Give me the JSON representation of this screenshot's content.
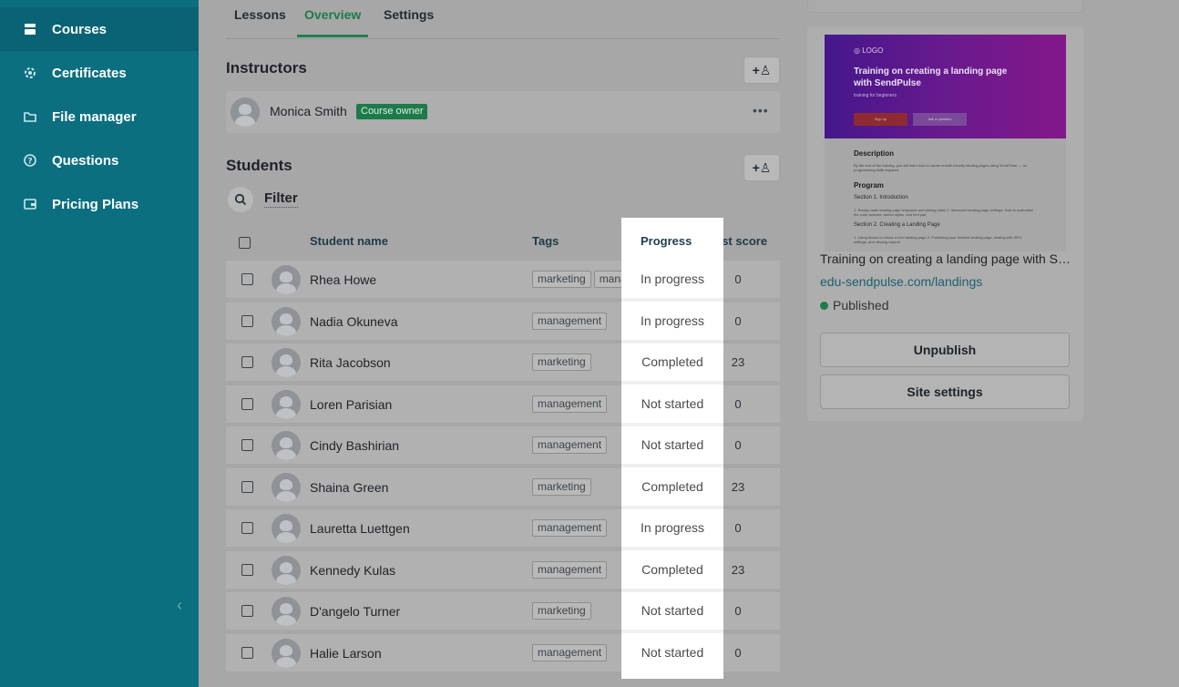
{
  "sidebar": {
    "items": [
      {
        "label": "Courses",
        "icon": "courses-icon",
        "active": true
      },
      {
        "label": "Certificates",
        "icon": "gear-icon",
        "active": false
      },
      {
        "label": "File manager",
        "icon": "folder-icon",
        "active": false
      },
      {
        "label": "Questions",
        "icon": "question-icon",
        "active": false
      },
      {
        "label": "Pricing Plans",
        "icon": "wallet-icon",
        "active": false
      }
    ],
    "collapse_glyph": "‹"
  },
  "tabs": [
    {
      "label": "Lessons",
      "active": false
    },
    {
      "label": "Overview",
      "active": true
    },
    {
      "label": "Settings",
      "active": false
    }
  ],
  "instructors": {
    "title": "Instructors",
    "add_label": "+♙",
    "list": [
      {
        "name": "Monica Smith",
        "badge": "Course owner",
        "more": "•••"
      }
    ]
  },
  "students": {
    "title": "Students",
    "add_label": "+♙",
    "filter_label": "Filter",
    "columns": {
      "name": "Student name",
      "progress": "Progress",
      "tags": "Tags",
      "score": "Test score"
    },
    "rows": [
      {
        "name": "Rhea Howe",
        "progress": "In progress",
        "tags": [
          "marketing",
          "management"
        ],
        "score": "0"
      },
      {
        "name": "Nadia Okuneva",
        "progress": "In progress",
        "tags": [
          "management"
        ],
        "score": "0"
      },
      {
        "name": "Rita Jacobson",
        "progress": "Completed",
        "tags": [
          "marketing"
        ],
        "score": "23"
      },
      {
        "name": "Loren Parisian",
        "progress": "Not started",
        "tags": [
          "management"
        ],
        "score": "0"
      },
      {
        "name": "Cindy Bashirian",
        "progress": "Not started",
        "tags": [
          "management"
        ],
        "score": "0"
      },
      {
        "name": "Shaina Green",
        "progress": "Completed",
        "tags": [
          "marketing"
        ],
        "score": "23"
      },
      {
        "name": "Lauretta Luettgen",
        "progress": "In progress",
        "tags": [
          "management"
        ],
        "score": "0"
      },
      {
        "name": "Kennedy Kulas",
        "progress": "Completed",
        "tags": [
          "management"
        ],
        "score": "23"
      },
      {
        "name": "D'angelo Turner",
        "progress": "Not started",
        "tags": [
          "marketing"
        ],
        "score": "0"
      },
      {
        "name": "Halie Larson",
        "progress": "Not started",
        "tags": [
          "management"
        ],
        "score": "0"
      }
    ]
  },
  "site": {
    "preview": {
      "logo": "◎ LOGO",
      "title": "Training on creating a landing page with SendPulse",
      "subtitle": "training for beginners",
      "btn1": "Sign up",
      "btn2": "Ask a question",
      "desc_h": "Description",
      "desc_t": "By the end of the training, you will learn how to create mobile-friendly landing pages using SendPulse — no programming skills required",
      "prog_h": "Program",
      "sec1": "Section 1. Introduction",
      "sec1_t": "1. Ready-made landing page templates and pricing plans  2. Advanced landing page settings: How to customize the color scheme, button styles, and font pair",
      "sec2": "Section 2. Creating a Landing Page",
      "sec2_t": "1. Using blocks to create a mini landing page  2. Publishing your finished landing page, dealing with SEO settings, and viewing reports"
    },
    "title": "Training on creating a landing page with SendPulse",
    "link": "edu-sendpulse.com/landings",
    "status": "Published",
    "unpublish_label": "Unpublish",
    "settings_label": "Site settings"
  }
}
